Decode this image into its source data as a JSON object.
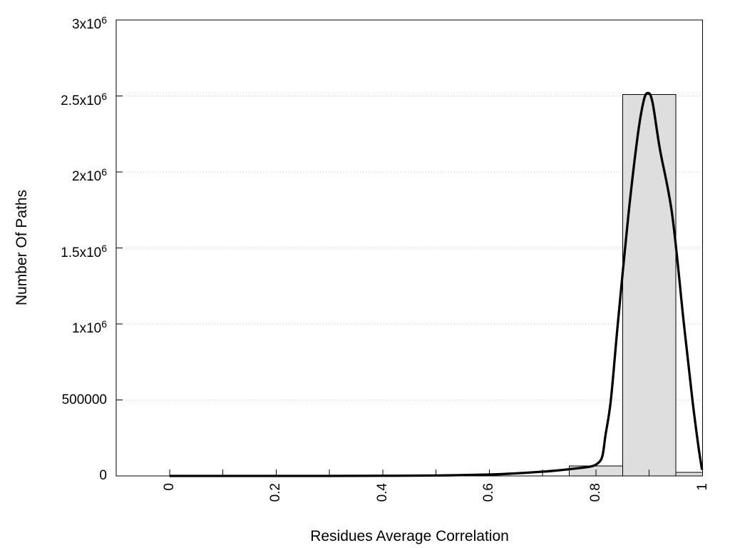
{
  "chart_data": {
    "type": "bar",
    "subtype": "histogram-with-density-curve",
    "title": "",
    "xlabel": "Residues Average Correlation",
    "ylabel": "Number Of Paths",
    "xlim": [
      -0.1,
      1.0
    ],
    "ylim": [
      0,
      3000000
    ],
    "grid": "horizontal-dotted",
    "legend_position": "none",
    "x_tick_interval_minor": 0.1,
    "x_ticks": [
      {
        "value": 0,
        "label": "0"
      },
      {
        "value": 0.2,
        "label": "0.2"
      },
      {
        "value": 0.4,
        "label": "0.4"
      },
      {
        "value": 0.6,
        "label": "0.6"
      },
      {
        "value": 0.8,
        "label": "0.8"
      },
      {
        "value": 1,
        "label": "1"
      }
    ],
    "y_ticks": [
      {
        "value": 0,
        "base": "0",
        "exp": ""
      },
      {
        "value": 500000,
        "base": "500000",
        "exp": ""
      },
      {
        "value": 1000000,
        "base": "1x10",
        "exp": "6"
      },
      {
        "value": 1500000,
        "base": "1.5x10",
        "exp": "6"
      },
      {
        "value": 2000000,
        "base": "2x10",
        "exp": "6"
      },
      {
        "value": 2500000,
        "base": "2.5x10",
        "exp": "6"
      },
      {
        "value": 3000000,
        "base": "3x10",
        "exp": "6"
      }
    ],
    "bars": [
      {
        "x_start": 0.75,
        "x_end": 0.85,
        "value": 66000
      },
      {
        "x_start": 0.85,
        "x_end": 0.95,
        "value": 2510000
      },
      {
        "x_start": 0.95,
        "x_end": 1.0,
        "value": 24000
      }
    ],
    "curve_points": [
      [
        0.0,
        0
      ],
      [
        0.1,
        0
      ],
      [
        0.2,
        0
      ],
      [
        0.3,
        0
      ],
      [
        0.4,
        1000
      ],
      [
        0.5,
        3000
      ],
      [
        0.6,
        9000
      ],
      [
        0.65,
        17000
      ],
      [
        0.7,
        28000
      ],
      [
        0.73,
        37000
      ],
      [
        0.76,
        48000
      ],
      [
        0.79,
        62000
      ],
      [
        0.803,
        82000
      ],
      [
        0.812,
        130000
      ],
      [
        0.818,
        270000
      ],
      [
        0.828,
        500000
      ],
      [
        0.841,
        1000000
      ],
      [
        0.861,
        1720000
      ],
      [
        0.878,
        2230000
      ],
      [
        0.889,
        2460000
      ],
      [
        0.897,
        2520000
      ],
      [
        0.906,
        2460000
      ],
      [
        0.92,
        2150000
      ],
      [
        0.943,
        1720000
      ],
      [
        0.965,
        1000000
      ],
      [
        0.981,
        500000
      ],
      [
        0.992,
        200000
      ],
      [
        0.999,
        40000
      ]
    ],
    "colors": {
      "background": "#ffffff",
      "bar_fill": "#dedede",
      "bar_border": "#000000",
      "curve": "#000000",
      "grid": "#cccccc",
      "axis": "#000000",
      "text": "#000000"
    }
  }
}
